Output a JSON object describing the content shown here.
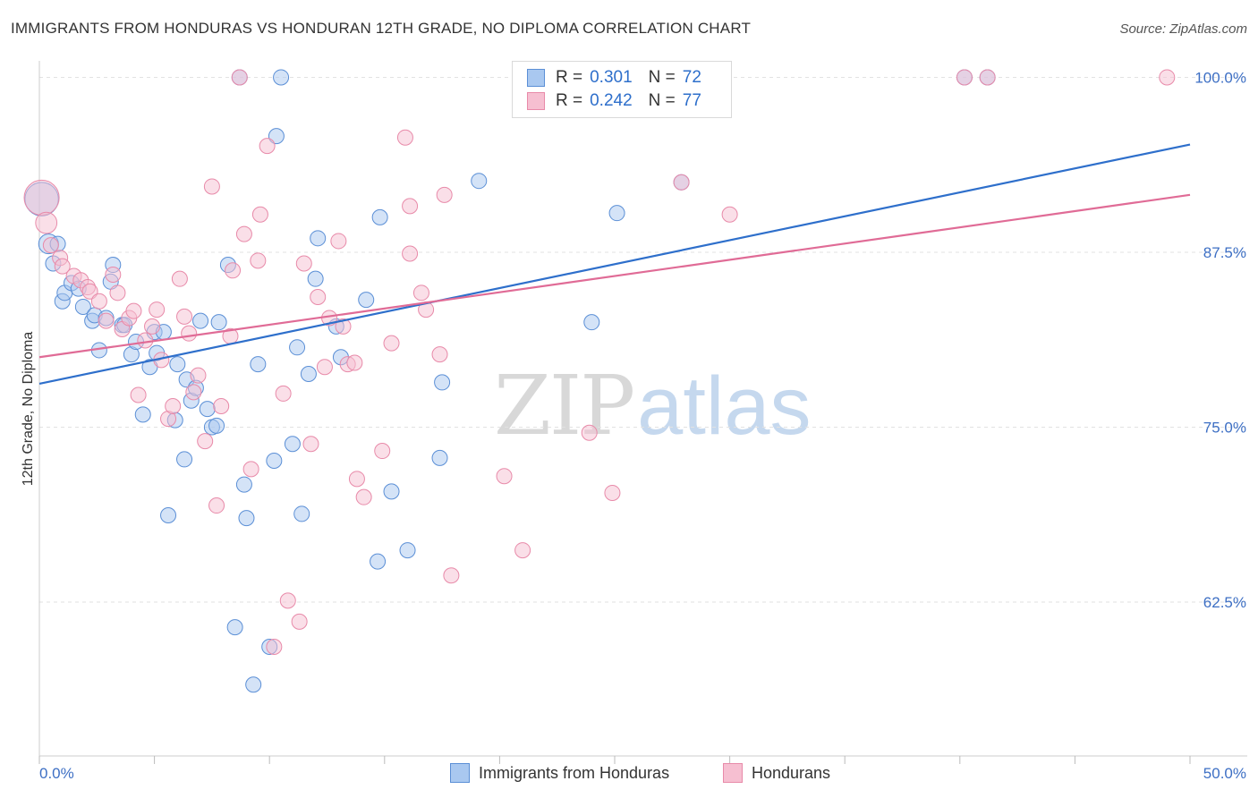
{
  "header": {
    "title": "IMMIGRANTS FROM HONDURAS VS HONDURAN 12TH GRADE, NO DIPLOMA CORRELATION CHART",
    "source": "Source: ZipAtlas.com"
  },
  "watermark": {
    "zip": "ZIP",
    "atlas": "atlas"
  },
  "legend_top": {
    "rows": [
      {
        "r_label": "R =",
        "r_value": "0.301",
        "n_label": "N =",
        "n_value": "72"
      },
      {
        "r_label": "R =",
        "r_value": "0.242",
        "n_label": "N =",
        "n_value": "77"
      }
    ]
  },
  "colors": {
    "blue_fill": "#a9c8f0",
    "blue_stroke": "#5b8fd6",
    "blue_line": "#2e6fcb",
    "pink_fill": "#f6bfd1",
    "pink_stroke": "#e88aa9",
    "pink_line": "#e06b96",
    "grid": "#e2e2e2",
    "axis_text": "#3d6fc4"
  },
  "chart_data": {
    "type": "scatter",
    "title": "IMMIGRANTS FROM HONDURAS VS HONDURAN 12TH GRADE, NO DIPLOMA CORRELATION CHART",
    "xlabel": "",
    "ylabel": "12th Grade, No Diploma",
    "xlim": [
      0,
      50
    ],
    "ylim": [
      51.5,
      101.5
    ],
    "x_tick_labels": [
      "0.0%",
      "50.0%"
    ],
    "y_ticks": [
      62.5,
      75.0,
      87.5,
      100.0
    ],
    "y_tick_labels": [
      "62.5%",
      "75.0%",
      "87.5%",
      "100.0%"
    ],
    "grid": true,
    "legend_placement": "top-center, bottom",
    "series": [
      {
        "name": "Immigrants from Honduras",
        "color": "#a9c8f0",
        "R": 0.301,
        "N": 72,
        "trend": {
          "x": [
            0,
            50
          ],
          "y": [
            78.1,
            95.2
          ]
        },
        "points": [
          [
            0.1,
            91.3,
            2.2
          ],
          [
            0.4,
            88.1,
            1.3
          ],
          [
            0.6,
            86.7,
            1.0
          ],
          [
            0.8,
            88.1,
            1.0
          ],
          [
            1.0,
            84.0,
            1.0
          ],
          [
            1.1,
            84.6,
            1.0
          ],
          [
            1.4,
            85.3,
            1.0
          ],
          [
            1.7,
            84.9,
            1.0
          ],
          [
            1.9,
            83.6,
            1.0
          ],
          [
            2.3,
            82.6,
            1.0
          ],
          [
            2.4,
            83.0,
            1.0
          ],
          [
            2.6,
            80.5,
            1.0
          ],
          [
            2.9,
            82.8,
            1.0
          ],
          [
            3.1,
            85.4,
            1.0
          ],
          [
            3.2,
            86.6,
            1.0
          ],
          [
            3.6,
            82.3,
            1.0
          ],
          [
            3.7,
            82.3,
            1.0
          ],
          [
            4.0,
            80.2,
            1.0
          ],
          [
            4.2,
            81.1,
            1.0
          ],
          [
            4.5,
            75.9,
            1.0
          ],
          [
            4.8,
            79.3,
            1.0
          ],
          [
            5.0,
            81.8,
            1.0
          ],
          [
            5.1,
            80.3,
            1.0
          ],
          [
            5.4,
            81.8,
            1.0
          ],
          [
            5.6,
            68.7,
            1.0
          ],
          [
            5.9,
            75.5,
            1.0
          ],
          [
            6.0,
            79.5,
            1.0
          ],
          [
            6.3,
            72.7,
            1.0
          ],
          [
            6.4,
            78.4,
            1.0
          ],
          [
            6.6,
            76.9,
            1.0
          ],
          [
            6.8,
            77.8,
            1.0
          ],
          [
            7.0,
            82.6,
            1.0
          ],
          [
            7.3,
            76.3,
            1.0
          ],
          [
            7.5,
            75.0,
            1.0
          ],
          [
            7.7,
            75.1,
            1.0
          ],
          [
            7.8,
            82.5,
            1.0
          ],
          [
            8.2,
            86.6,
            1.0
          ],
          [
            8.5,
            60.7,
            1.0
          ],
          [
            8.7,
            100.0,
            1.0
          ],
          [
            8.9,
            70.9,
            1.0
          ],
          [
            9.0,
            68.5,
            1.0
          ],
          [
            9.3,
            56.6,
            1.0
          ],
          [
            9.5,
            79.5,
            1.0
          ],
          [
            10.0,
            59.3,
            1.0
          ],
          [
            10.2,
            72.6,
            1.0
          ],
          [
            10.3,
            95.8,
            1.0
          ],
          [
            10.5,
            100.0,
            1.0
          ],
          [
            11.0,
            73.8,
            1.0
          ],
          [
            11.2,
            80.7,
            1.0
          ],
          [
            11.4,
            68.8,
            1.0
          ],
          [
            11.7,
            78.8,
            1.0
          ],
          [
            12.0,
            85.6,
            1.0
          ],
          [
            12.1,
            88.5,
            1.0
          ],
          [
            12.9,
            82.2,
            1.0
          ],
          [
            13.1,
            80.0,
            1.0
          ],
          [
            14.2,
            84.1,
            1.0
          ],
          [
            14.7,
            65.4,
            1.0
          ],
          [
            14.8,
            90.0,
            1.0
          ],
          [
            15.3,
            70.4,
            1.0
          ],
          [
            16.0,
            66.2,
            1.0
          ],
          [
            17.4,
            72.8,
            1.0
          ],
          [
            17.5,
            78.2,
            1.0
          ],
          [
            19.1,
            92.6,
            1.0
          ],
          [
            24.0,
            82.5,
            1.0
          ],
          [
            25.0,
            100.0,
            1.0
          ],
          [
            25.1,
            90.3,
            1.0
          ],
          [
            27.9,
            92.5,
            1.0
          ],
          [
            28.5,
            100.0,
            1.0
          ],
          [
            40.2,
            100.0,
            1.0
          ],
          [
            41.2,
            100.0,
            1.0
          ]
        ]
      },
      {
        "name": "Hondurans",
        "color": "#f6bfd1",
        "R": 0.242,
        "N": 77,
        "trend": {
          "x": [
            0,
            50
          ],
          "y": [
            80.0,
            91.6
          ]
        },
        "points": [
          [
            0.1,
            91.4,
            2.3
          ],
          [
            0.3,
            89.6,
            1.4
          ],
          [
            0.5,
            88.0,
            1.0
          ],
          [
            0.9,
            87.1,
            1.0
          ],
          [
            1.0,
            86.5,
            1.0
          ],
          [
            1.5,
            85.8,
            1.0
          ],
          [
            1.8,
            85.5,
            1.0
          ],
          [
            2.1,
            85.0,
            1.0
          ],
          [
            2.2,
            84.7,
            1.0
          ],
          [
            2.6,
            84.0,
            1.0
          ],
          [
            2.9,
            82.6,
            1.0
          ],
          [
            3.2,
            85.9,
            1.0
          ],
          [
            3.4,
            84.6,
            1.0
          ],
          [
            3.6,
            82.0,
            1.0
          ],
          [
            3.9,
            82.8,
            1.0
          ],
          [
            4.1,
            83.3,
            1.0
          ],
          [
            4.3,
            77.3,
            1.0
          ],
          [
            4.6,
            81.2,
            1.0
          ],
          [
            4.9,
            82.2,
            1.0
          ],
          [
            5.1,
            83.4,
            1.0
          ],
          [
            5.3,
            79.8,
            1.0
          ],
          [
            5.6,
            75.6,
            1.0
          ],
          [
            5.8,
            76.5,
            1.0
          ],
          [
            6.1,
            85.6,
            1.0
          ],
          [
            6.3,
            82.9,
            1.0
          ],
          [
            6.5,
            81.7,
            1.0
          ],
          [
            6.7,
            77.5,
            1.0
          ],
          [
            6.9,
            78.7,
            1.0
          ],
          [
            7.2,
            74.0,
            1.0
          ],
          [
            7.5,
            92.2,
            1.0
          ],
          [
            7.7,
            69.4,
            1.0
          ],
          [
            7.9,
            76.5,
            1.0
          ],
          [
            8.3,
            81.5,
            1.0
          ],
          [
            8.4,
            86.2,
            1.0
          ],
          [
            8.7,
            100.0,
            1.0
          ],
          [
            8.9,
            88.8,
            1.0
          ],
          [
            9.2,
            72.0,
            1.0
          ],
          [
            9.5,
            86.9,
            1.0
          ],
          [
            9.6,
            90.2,
            1.0
          ],
          [
            9.9,
            95.1,
            1.0
          ],
          [
            10.2,
            59.3,
            1.0
          ],
          [
            10.6,
            77.4,
            1.0
          ],
          [
            10.8,
            62.6,
            1.0
          ],
          [
            11.3,
            61.1,
            1.0
          ],
          [
            11.5,
            86.7,
            1.0
          ],
          [
            11.8,
            73.8,
            1.0
          ],
          [
            12.1,
            84.3,
            1.0
          ],
          [
            12.4,
            79.3,
            1.0
          ],
          [
            12.6,
            82.8,
            1.0
          ],
          [
            13.0,
            88.3,
            1.0
          ],
          [
            13.2,
            82.2,
            1.0
          ],
          [
            13.4,
            79.5,
            1.0
          ],
          [
            13.7,
            79.6,
            1.0
          ],
          [
            13.8,
            71.3,
            1.0
          ],
          [
            14.1,
            70.0,
            1.0
          ],
          [
            14.9,
            73.3,
            1.0
          ],
          [
            15.3,
            81.0,
            1.0
          ],
          [
            15.9,
            95.7,
            1.0
          ],
          [
            16.1,
            90.8,
            1.0
          ],
          [
            16.1,
            87.4,
            1.0
          ],
          [
            16.6,
            84.6,
            1.0
          ],
          [
            16.8,
            83.4,
            1.0
          ],
          [
            17.4,
            80.2,
            1.0
          ],
          [
            17.6,
            91.6,
            1.0
          ],
          [
            17.9,
            64.4,
            1.0
          ],
          [
            20.2,
            71.5,
            1.0
          ],
          [
            21.0,
            66.2,
            1.0
          ],
          [
            23.9,
            74.6,
            1.0
          ],
          [
            24.9,
            70.3,
            1.0
          ],
          [
            27.9,
            92.5,
            1.0
          ],
          [
            30.0,
            90.2,
            1.0
          ],
          [
            40.2,
            100.0,
            1.0
          ],
          [
            41.2,
            100.0,
            1.0
          ],
          [
            49.0,
            100.0,
            1.0
          ]
        ]
      }
    ]
  },
  "legend_bottom": {
    "items": [
      {
        "label": "Immigrants from Honduras"
      },
      {
        "label": "Hondurans"
      }
    ]
  }
}
